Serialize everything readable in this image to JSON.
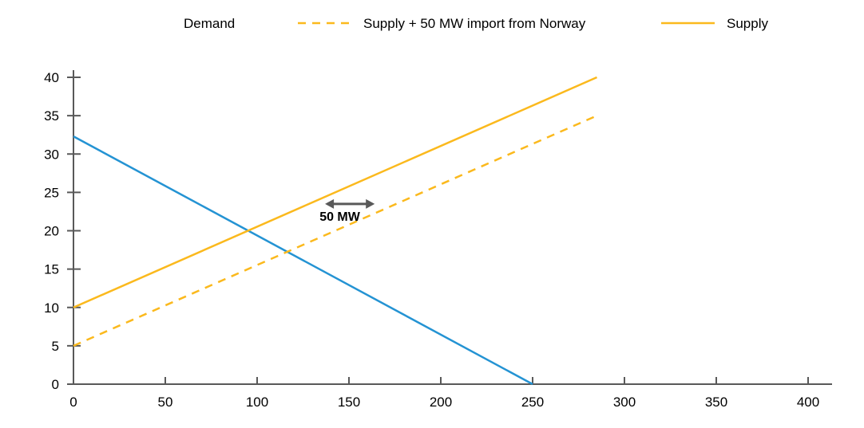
{
  "chart_data": {
    "type": "line",
    "title": "",
    "xlabel": "",
    "ylabel": "",
    "xlim": [
      0,
      400
    ],
    "ylim": [
      0,
      40
    ],
    "x_ticks": [
      "0",
      "50",
      "100",
      "150",
      "200",
      "250",
      "300",
      "350",
      "400"
    ],
    "y_ticks": [
      "0",
      "5",
      "10",
      "15",
      "20",
      "25",
      "30",
      "35",
      "40"
    ],
    "grid": false,
    "legend": {
      "placement": "top",
      "entries": [
        {
          "label": "Demand",
          "series": "demand",
          "swatch": "none"
        },
        {
          "label": "Supply  + 50 MW import  from Norway",
          "series": "supply_import",
          "swatch": "dashed"
        },
        {
          "label": "Supply",
          "series": "supply",
          "swatch": "solid"
        }
      ]
    },
    "series": [
      {
        "id": "demand",
        "name": "Demand",
        "color": "#2493d3",
        "dash": false,
        "points": [
          [
            0,
            32.3
          ],
          [
            250,
            0
          ]
        ]
      },
      {
        "id": "supply_import",
        "name": "Supply  + 50 MW import  from Norway",
        "color": "#fbb91d",
        "dash": true,
        "points": [
          [
            0,
            5
          ],
          [
            285,
            35
          ]
        ]
      },
      {
        "id": "supply",
        "name": "Supply",
        "color": "#fbb91d",
        "dash": false,
        "points": [
          [
            0,
            10
          ],
          [
            285,
            40
          ]
        ]
      }
    ],
    "annotations": [
      {
        "text": "50 MW",
        "type": "double-arrow",
        "x_from": 137,
        "x_to": 164,
        "y": 23.5,
        "color": "#595959",
        "label_x": 134,
        "label_y": 21.3
      }
    ]
  }
}
